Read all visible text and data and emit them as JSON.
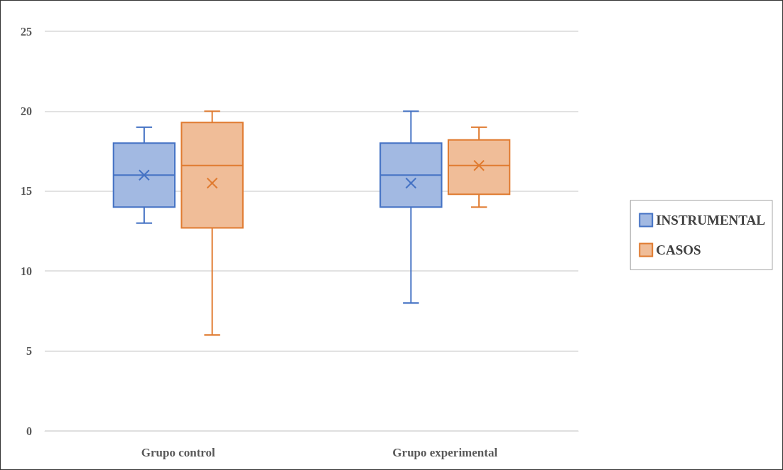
{
  "chart_data": {
    "type": "box",
    "categories": [
      "Grupo control",
      "Grupo experimental"
    ],
    "series": [
      {
        "name": "INSTRUMENTAL",
        "color": "#4472c4",
        "boxes": [
          {
            "low": 13,
            "q1": 14,
            "median": 16,
            "q3": 18,
            "high": 19,
            "mean": 16
          },
          {
            "low": 8,
            "q1": 14,
            "median": 16,
            "q3": 18,
            "high": 20,
            "mean": 15.5
          }
        ]
      },
      {
        "name": "CASOS",
        "color": "#e07b30",
        "boxes": [
          {
            "low": 6,
            "q1": 12.7,
            "median": 16.6,
            "q3": 19.3,
            "high": 20,
            "mean": 15.5
          },
          {
            "low": 14,
            "q1": 14.8,
            "median": 16.6,
            "q3": 18.2,
            "high": 19,
            "mean": 16.6
          }
        ]
      }
    ],
    "ylim": [
      0,
      25
    ],
    "yticks": [
      0,
      5,
      10,
      15,
      20,
      25
    ],
    "grid": "y",
    "legend": "right",
    "marker": "cross"
  }
}
